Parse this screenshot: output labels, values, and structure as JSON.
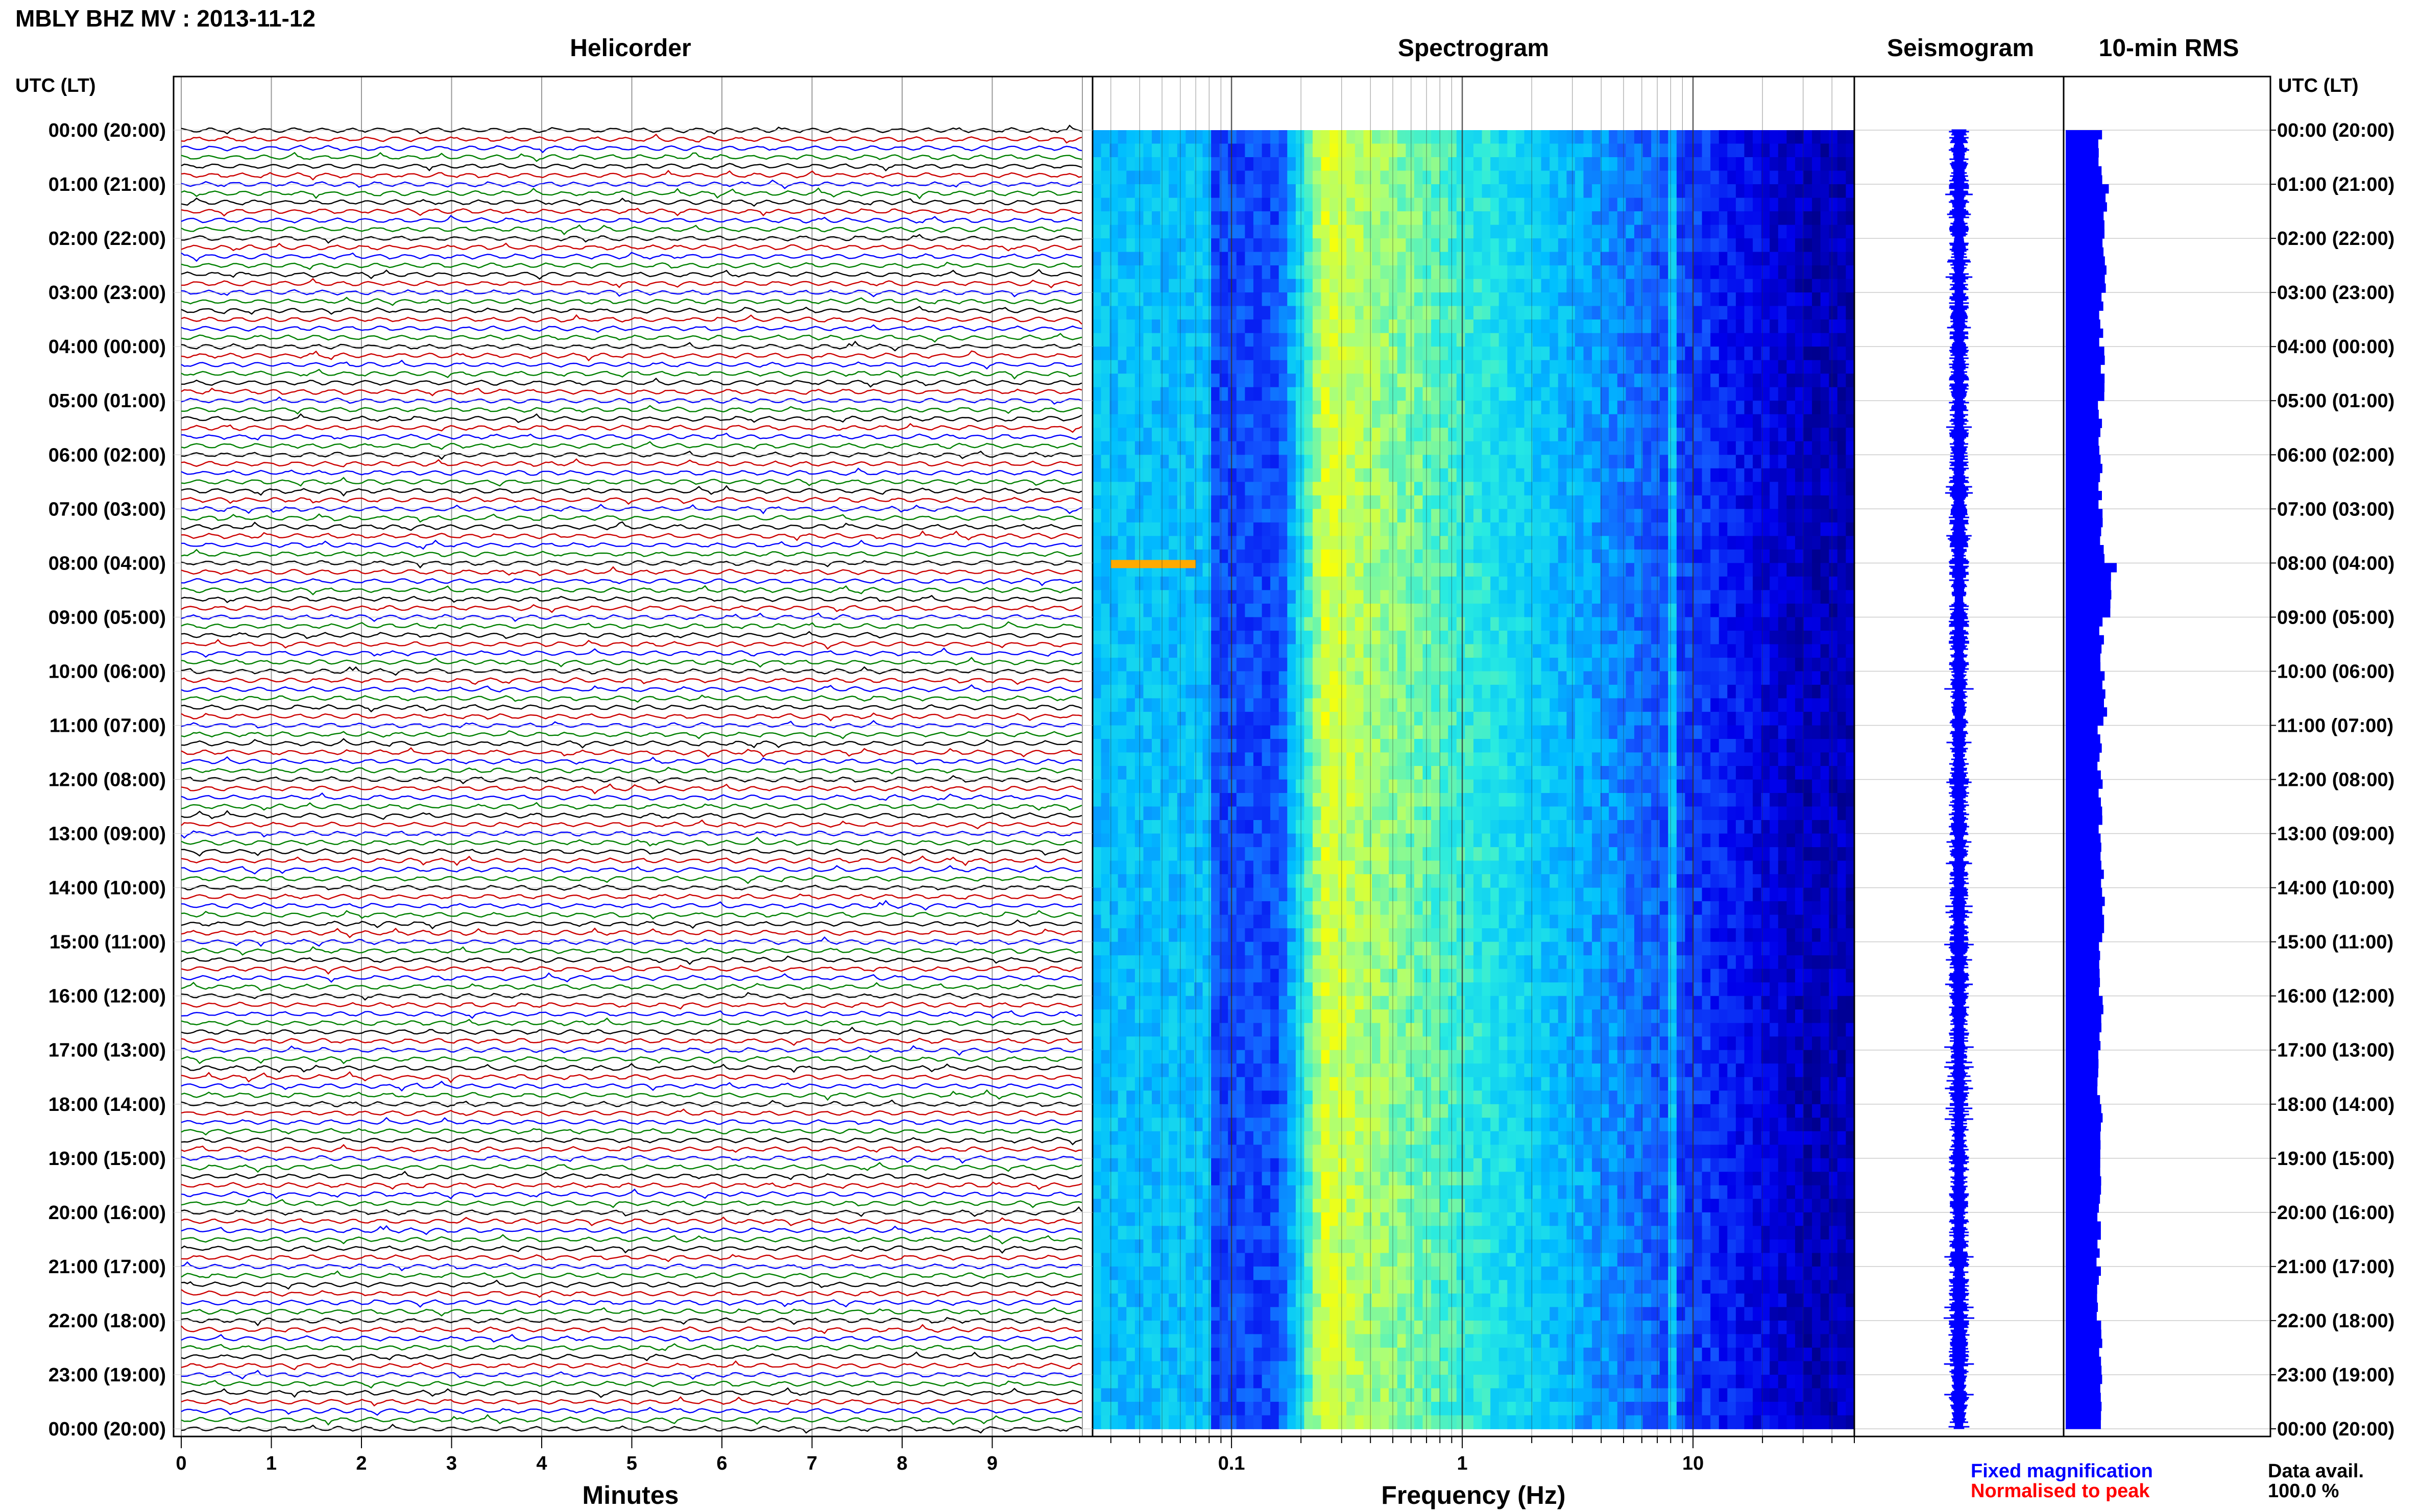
{
  "title": "MBLY BHZ MV : 2013-11-12",
  "time_axis": {
    "label": "UTC (LT)",
    "ticks": [
      "00:00 (20:00)",
      "01:00 (21:00)",
      "02:00 (22:00)",
      "03:00 (23:00)",
      "04:00 (00:00)",
      "05:00 (01:00)",
      "06:00 (02:00)",
      "07:00 (03:00)",
      "08:00 (04:00)",
      "09:00 (05:00)",
      "10:00 (06:00)",
      "11:00 (07:00)",
      "12:00 (08:00)",
      "13:00 (09:00)",
      "14:00 (10:00)",
      "15:00 (11:00)",
      "16:00 (12:00)",
      "17:00 (13:00)",
      "18:00 (14:00)",
      "19:00 (15:00)",
      "20:00 (16:00)",
      "21:00 (17:00)",
      "22:00 (18:00)",
      "23:00 (19:00)",
      "00:00 (20:00)"
    ]
  },
  "legend": {
    "fixed": "Fixed magnification",
    "normalised": "Normalised to peak"
  },
  "data_availability": {
    "label": "Data avail.",
    "value": "100.0 %"
  },
  "colors": {
    "trace_cycle": [
      "#000000",
      "#cc0000",
      "#0000ff",
      "#008000"
    ],
    "seismogram": "#0000ff",
    "rms_bar": "#0000ff",
    "spectrogram_low": "#0000a0",
    "spectrogram_high": "#ffff00"
  },
  "chart_data": [
    {
      "type": "line",
      "panel": "Helicorder",
      "title": "Helicorder",
      "xlabel": "Minutes",
      "x_ticks": [
        "0",
        "1",
        "2",
        "3",
        "4",
        "5",
        "6",
        "7",
        "8",
        "9"
      ],
      "xlim": [
        0,
        10
      ],
      "rows": 144,
      "row_minutes": 10,
      "grid": true
    },
    {
      "type": "heatmap",
      "panel": "Spectrogram",
      "title": "Spectrogram",
      "xlabel": "Frequency (Hz)",
      "x_scale": "log",
      "xlim": [
        0.025,
        50
      ],
      "x_ticks": [
        "0.1",
        "1",
        "10"
      ],
      "energy_peak_hz": 0.25,
      "persistent_line_hz": 8,
      "notable_event": {
        "time_utc": "08:00",
        "freq_hz_range": [
          0.03,
          0.07
        ]
      }
    },
    {
      "type": "line",
      "panel": "Seismogram",
      "title": "Seismogram"
    },
    {
      "type": "bar",
      "panel": "10-min RMS",
      "title": "10-min RMS",
      "interval_minutes": 10,
      "hourly_mean_rms": [
        0.36,
        0.42,
        0.4,
        0.37,
        0.38,
        0.35,
        0.36,
        0.38,
        0.47,
        0.37,
        0.4,
        0.35,
        0.36,
        0.37,
        0.38,
        0.36,
        0.37,
        0.35,
        0.36,
        0.35,
        0.34,
        0.34,
        0.37,
        0.38
      ],
      "peak_time_utc": "08:00"
    }
  ]
}
